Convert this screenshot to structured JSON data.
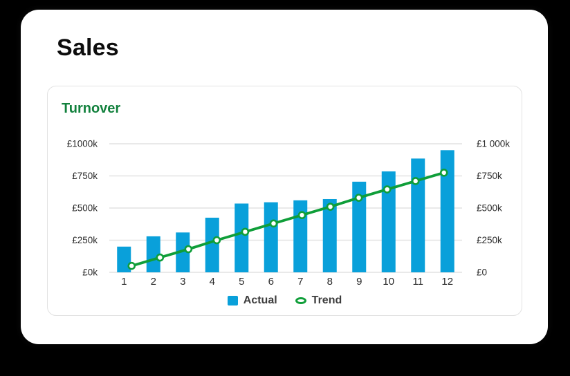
{
  "window": {
    "background_color": "#000000",
    "card_color": "#ffffff"
  },
  "sales_card": {
    "title": "Sales"
  },
  "chart_data": {
    "type": "bar+line combo",
    "title": "Turnover",
    "title_color": "#12813d",
    "categories": [
      "1",
      "2",
      "3",
      "4",
      "5",
      "6",
      "7",
      "8",
      "9",
      "10",
      "11",
      "12"
    ],
    "series": [
      {
        "name": "Actual",
        "type": "bar",
        "color": "#09a0da",
        "values": [
          200,
          280,
          310,
          425,
          535,
          545,
          560,
          570,
          705,
          785,
          885,
          950
        ]
      },
      {
        "name": "Trend",
        "type": "line",
        "color": "#0f9e39",
        "marker": "open-circle",
        "values": [
          50,
          115,
          180,
          250,
          315,
          380,
          445,
          510,
          580,
          645,
          710,
          775
        ]
      }
    ],
    "ylim": [
      0,
      1000
    ],
    "y_axis_left": {
      "ticks": [
        {
          "v": 0,
          "label": "£0k"
        },
        {
          "v": 250,
          "label": "£250k"
        },
        {
          "v": 500,
          "label": "£500k"
        },
        {
          "v": 750,
          "label": "£750k"
        },
        {
          "v": 1000,
          "label": "£1000k"
        }
      ]
    },
    "y_axis_right": {
      "ticks": [
        {
          "v": 0,
          "label": "£0"
        },
        {
          "v": 250,
          "label": "£250k"
        },
        {
          "v": 500,
          "label": "£500k"
        },
        {
          "v": 750,
          "label": "£750k"
        },
        {
          "v": 1000,
          "label": "£1 000k"
        }
      ]
    },
    "grid": true,
    "legend_position": "bottom"
  },
  "style": {
    "grid_color": "#e2e2e2",
    "axis_text_color": "#2a2a2a",
    "legend_text_color": "#3d3d3d",
    "card_border_color": "#e2e2e2"
  }
}
